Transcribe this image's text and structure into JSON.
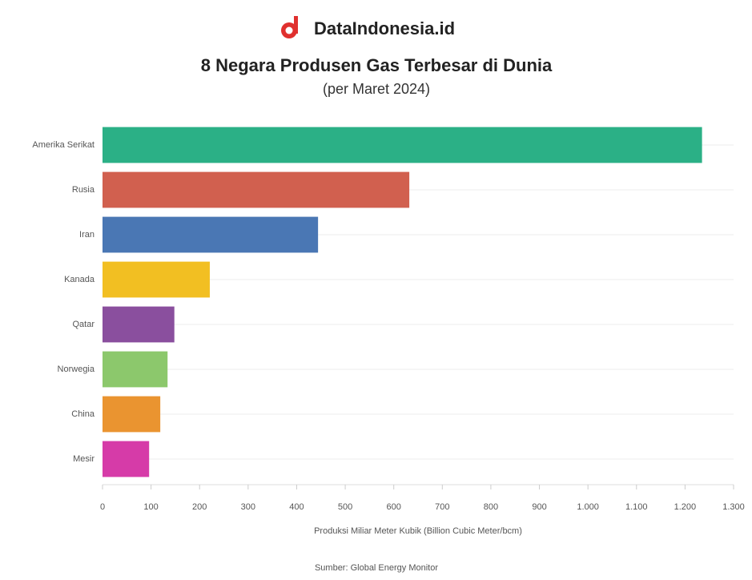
{
  "brand": "DataIndonesia.id",
  "chart_data": {
    "type": "barh",
    "title": "8 Negara Produsen Gas Terbesar di Dunia",
    "subtitle": "(per Maret 2024)",
    "categories": [
      "Amerika Serikat",
      "Rusia",
      "Iran",
      "Kanada",
      "Qatar",
      "Norwegia",
      "China",
      "Mesir"
    ],
    "values": [
      1235,
      632,
      444,
      221,
      148,
      134,
      119,
      96
    ],
    "colors": [
      "#2bb086",
      "#d1604f",
      "#4a77b4",
      "#f2bf22",
      "#8a4f9e",
      "#8cc86c",
      "#ea9430",
      "#d63ba8"
    ],
    "xlim": [
      0,
      1300
    ],
    "xticks": [
      0,
      100,
      200,
      300,
      400,
      500,
      600,
      700,
      800,
      900,
      {
        "value": 1000,
        "label": "1.000"
      },
      {
        "value": 1100,
        "label": "1.100"
      },
      {
        "value": 1200,
        "label": "1.200"
      },
      {
        "value": 1300,
        "label": "1.300"
      }
    ],
    "xlabel": "Produksi Miliar Meter Kubik (Billion Cubic Meter/bcm)",
    "source": "Sumber: Global Energy Monitor"
  }
}
